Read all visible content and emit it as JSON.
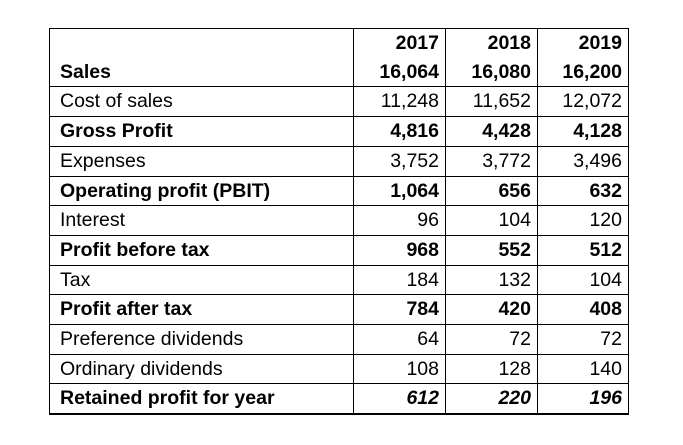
{
  "header": {
    "years": [
      "2017",
      "2018",
      "2019"
    ]
  },
  "rows": [
    {
      "label": "Sales",
      "values": [
        "16,064",
        "16,080",
        "16,200"
      ]
    },
    {
      "label": "Cost of sales",
      "values": [
        "11,248",
        "11,652",
        "12,072"
      ]
    },
    {
      "label": "Gross Profit",
      "values": [
        "4,816",
        "4,428",
        "4,128"
      ]
    },
    {
      "label": "Expenses",
      "values": [
        "3,752",
        "3,772",
        "3,496"
      ]
    },
    {
      "label": "Operating profit (PBIT)",
      "values": [
        "1,064",
        "656",
        "632"
      ]
    },
    {
      "label": "Interest",
      "values": [
        "96",
        "104",
        "120"
      ]
    },
    {
      "label": "Profit before tax",
      "values": [
        "968",
        "552",
        "512"
      ]
    },
    {
      "label": "Tax",
      "values": [
        "184",
        "132",
        "104"
      ]
    },
    {
      "label": "Profit after tax",
      "values": [
        "784",
        "420",
        "408"
      ]
    },
    {
      "label": "Preference dividends",
      "values": [
        "64",
        "72",
        "72"
      ]
    },
    {
      "label": "Ordinary dividends",
      "values": [
        "108",
        "128",
        "140"
      ]
    },
    {
      "label": "Retained profit for year",
      "values": [
        "612",
        "220",
        "196"
      ]
    }
  ]
}
